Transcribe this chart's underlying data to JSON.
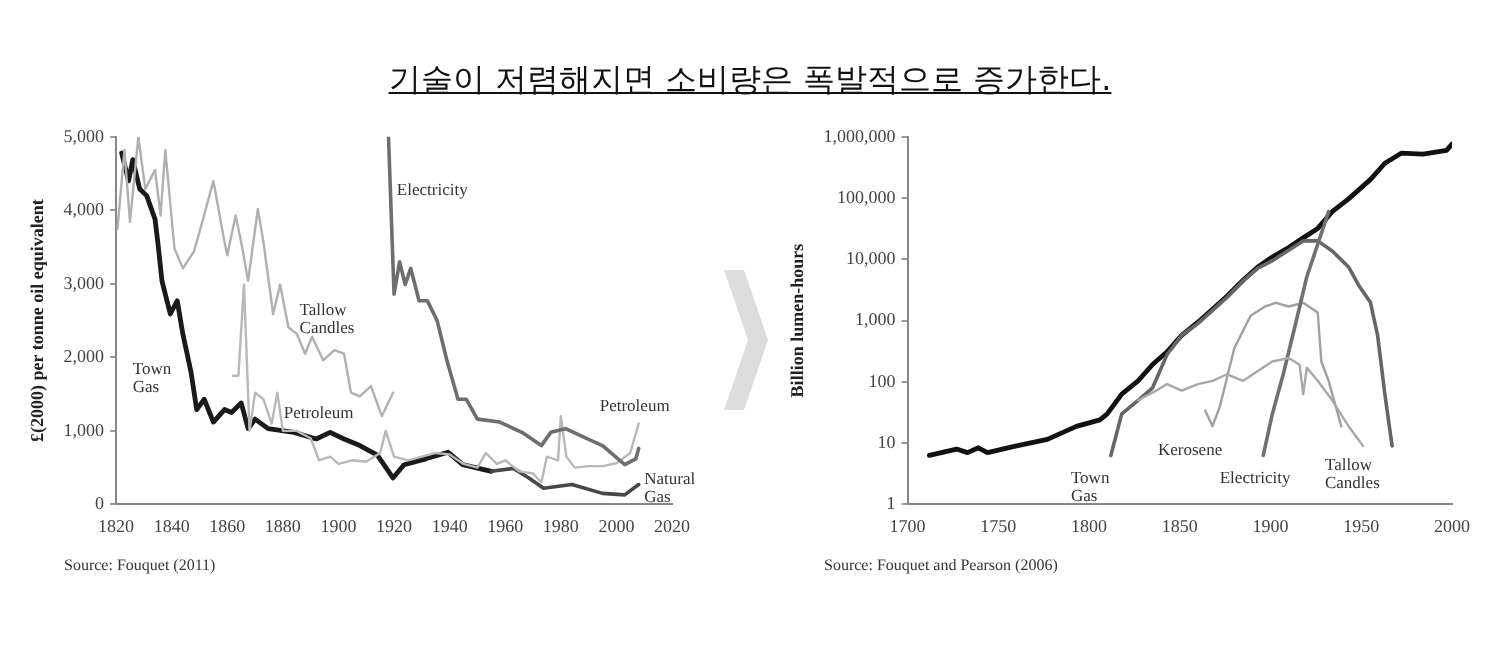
{
  "chart_data": [
    {
      "type": "line",
      "title": "기술이 저렴해지면 소비량은 폭발적으로 증가한다.",
      "ylabel": "£(2000) per tonne oil equivalent",
      "xlim": [
        1820,
        2020
      ],
      "xticks": [
        1820,
        1840,
        1860,
        1880,
        1900,
        1920,
        1940,
        1960,
        1980,
        2000,
        2020
      ],
      "ylim": [
        0,
        5000
      ],
      "yticks": [
        0,
        {
          "value": 1000,
          "label": "1,000"
        },
        {
          "value": 2000,
          "label": "2,000"
        },
        {
          "value": 3000,
          "label": "3,000"
        },
        {
          "value": 4000,
          "label": "4,000"
        },
        {
          "value": 5000,
          "label": "5,000"
        }
      ],
      "annotations": [
        "Source: Fouquet (2011)"
      ],
      "series": [
        {
          "name": "Town Gas",
          "color": "#1a1a1a",
          "x": [
            1822,
            1824.5,
            1826,
            1828.5,
            1831,
            1834,
            1835,
            1836.5,
            1839.5,
            1842,
            1844,
            1847,
            1849,
            1851.7,
            1855,
            1859,
            1861.5,
            1865,
            1867.5,
            1870,
            1874.7,
            1884,
            1892,
            1897,
            1902,
            1907.7,
            1914,
            1919.6,
            1923.6,
            1931.5,
            1939.4,
            1944.7,
            1955
          ],
          "values": [
            4780,
            4400,
            4690,
            4290,
            4200,
            3880,
            3570,
            3040,
            2590,
            2770,
            2320,
            1790,
            1290,
            1430,
            1120,
            1290,
            1250,
            1380,
            1030,
            1160,
            1030,
            980,
            890,
            980,
            890,
            800,
            670,
            360,
            540,
            620,
            710,
            540,
            450
          ]
        },
        {
          "name": "Natural Gas",
          "color": "#474747",
          "x": [
            1955,
            1963,
            1968.5,
            1973.8,
            1984,
            1995,
            2003,
            2008
          ],
          "values": [
            450,
            490,
            360,
            220,
            270,
            150,
            130,
            270
          ]
        },
        {
          "name": "Tallow Candles",
          "color": "#b0b0b0",
          "x": [
            1820.5,
            1823,
            1825,
            1828,
            1830.5,
            1834,
            1836,
            1837.7,
            1841,
            1844,
            1848,
            1851,
            1855,
            1859,
            1860,
            1863,
            1865,
            1867.5,
            1871,
            1873,
            1876.5,
            1879,
            1882,
            1885,
            1888,
            1890.5,
            1894.5,
            1898.5,
            1902,
            1904.5,
            1907.7,
            1911.7,
            1915.6,
            1919.6
          ],
          "values": [
            3750,
            4820,
            3840,
            5000,
            4290,
            4550,
            3930,
            4820,
            3480,
            3210,
            3440,
            3840,
            4400,
            3570,
            3390,
            3930,
            3570,
            3040,
            4020,
            3570,
            2590,
            2990,
            2410,
            2320,
            2050,
            2280,
            1960,
            2100,
            2050,
            1520,
            1470,
            1610,
            1200,
            1520
          ]
        },
        {
          "name": "Petroleum",
          "color": "#b8b8b8",
          "x": [
            1862,
            1864,
            1866,
            1868,
            1870,
            1873,
            1876,
            1878,
            1880,
            1885,
            1890,
            1893,
            1897,
            1900,
            1905,
            1910,
            1915,
            1917,
            1920,
            1925,
            1930,
            1935,
            1940,
            1945,
            1950,
            1953,
            1957,
            1960,
            1965,
            1970,
            1973,
            1975,
            1979,
            1980,
            1982,
            1985,
            1990,
            1995,
            2000,
            2005,
            2008
          ],
          "values": [
            1750,
            1750,
            2990,
            1000,
            1520,
            1430,
            1100,
            1520,
            1000,
            1000,
            900,
            600,
            650,
            550,
            600,
            580,
            700,
            1000,
            650,
            600,
            650,
            700,
            680,
            550,
            500,
            700,
            550,
            600,
            450,
            420,
            300,
            650,
            600,
            1200,
            650,
            500,
            520,
            520,
            560,
            700,
            1100
          ]
        },
        {
          "name": "Electricity",
          "color": "#6e6e6e",
          "x": [
            1918,
            1920,
            1922,
            1924,
            1926,
            1929,
            1932,
            1935.5,
            1939,
            1943,
            1946,
            1950,
            1958,
            1966,
            1973,
            1976.4,
            1981.7,
            1989.6,
            1995,
            2003,
            2007,
            2008
          ],
          "values": [
            5000,
            2860,
            3300,
            2990,
            3210,
            2770,
            2770,
            2500,
            1960,
            1430,
            1430,
            1160,
            1120,
            980,
            800,
            980,
            1030,
            890,
            800,
            540,
            620,
            760
          ]
        }
      ]
    },
    {
      "type": "line",
      "ylabel": "Billion lumen-hours",
      "log": "y",
      "xlim": [
        1700,
        2000
      ],
      "xticks": [
        1700,
        1750,
        1800,
        1850,
        1900,
        1950,
        2000
      ],
      "ylim": [
        1,
        1000000
      ],
      "yticks": [
        1,
        10,
        100,
        {
          "value": 1000,
          "label": "1,000"
        },
        {
          "value": 10000,
          "label": "10,000"
        },
        {
          "value": 100000,
          "label": "100,000"
        },
        {
          "value": 1000000,
          "label": "1,000,000"
        }
      ],
      "annotations": [
        "Source: Fouquet and Pearson (2006)"
      ],
      "series": [
        {
          "color": "#111111",
          "x": [
            1712,
            1727,
            1733,
            1739,
            1744,
            1760,
            1777,
            1793,
            1806,
            1810,
            1818,
            1827,
            1835,
            1843,
            1851,
            1860,
            1868,
            1876,
            1885,
            1893,
            1901,
            1910,
            1918,
            1926,
            1934,
            1943,
            1955,
            1963,
            1972,
            1984,
            1997,
            2000
          ],
          "values": [
            6.3,
            8,
            7,
            8.4,
            7,
            9,
            11.5,
            18.8,
            24,
            30,
            63,
            104,
            192,
            310,
            575,
            940,
            1530,
            2500,
            4600,
            7500,
            10900,
            15600,
            22400,
            32000,
            60000,
            97000,
            200000,
            370000,
            540000,
            520000,
            600000,
            760000
          ]
        },
        {
          "name": "Town Gas",
          "color": "#666666",
          "x": [
            1812,
            1818,
            1827,
            1835,
            1843,
            1851,
            1860,
            1876,
            1885,
            1893,
            1901,
            1918,
            1926,
            1934,
            1943,
            1949,
            1955,
            1959,
            1963,
            1967
          ],
          "values": [
            6.3,
            30,
            50,
            80,
            280,
            575,
            900,
            2400,
            4500,
            7200,
            9500,
            20000,
            20000,
            13700,
            7500,
            3600,
            2000,
            575,
            63,
            9
          ]
        },
        {
          "name": "Kerosene",
          "color": "#a0a0a0",
          "x": [
            1864,
            1868,
            1872,
            1880,
            1889,
            1897,
            1903,
            1910,
            1918,
            1926,
            1928,
            1932,
            1939
          ],
          "values": [
            34,
            18.8,
            39,
            350,
            1200,
            1700,
            1950,
            1700,
            1950,
            1350,
            215,
            104,
            18.8
          ]
        },
        {
          "name": "Electricity",
          "color": "#707070",
          "x": [
            1896,
            1901,
            1907,
            1914,
            1920,
            1926,
            1932
          ],
          "values": [
            6.3,
            30,
            133,
            940,
            5200,
            17600,
            60000
          ]
        },
        {
          "name": "Tallow Candles",
          "color": "#a8a8a8",
          "x": [
            1827,
            1837,
            1843,
            1851,
            1860,
            1868,
            1876,
            1885,
            1893,
            1901,
            1910,
            1916,
            1918,
            1920,
            1926,
            1934,
            1943,
            1951
          ],
          "values": [
            50,
            72,
            92,
            72,
            92,
            104,
            133,
            104,
            150,
            215,
            245,
            190,
            63,
            170,
            104,
            50,
            18.8,
            9
          ]
        }
      ]
    }
  ]
}
